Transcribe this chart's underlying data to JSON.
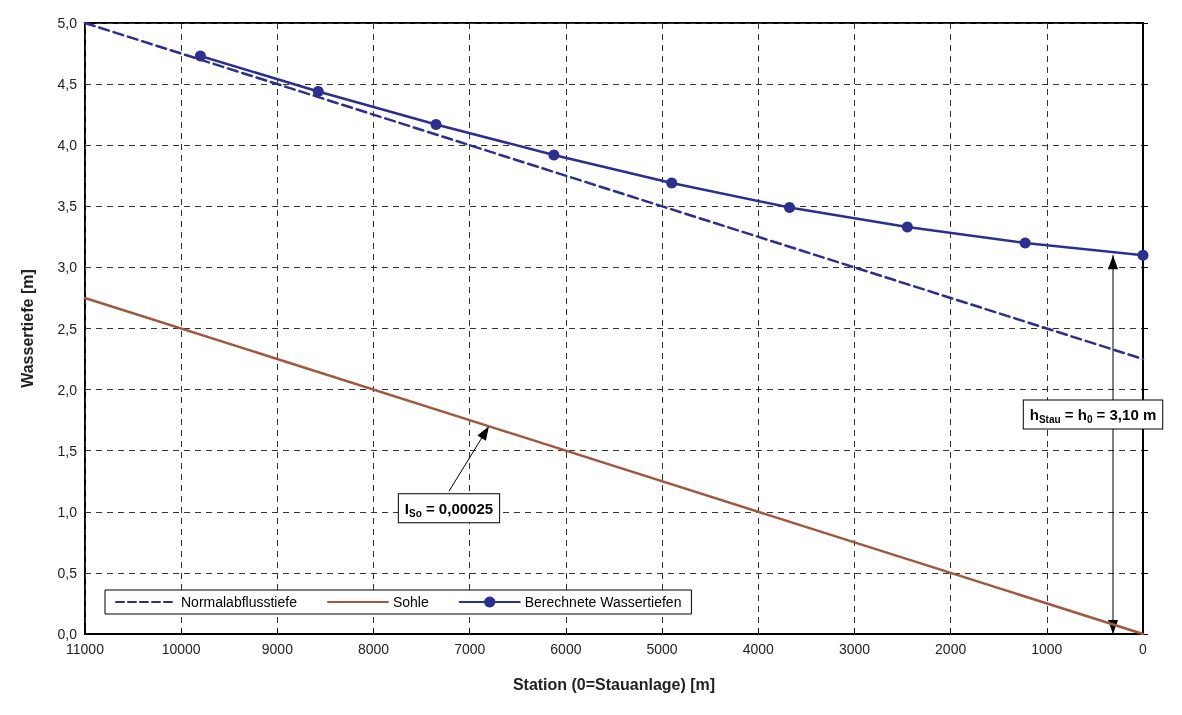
{
  "chart_data": {
    "type": "line",
    "xlabel": "Station (0=Stauanlage) [m]",
    "ylabel": "Wassertiefe [m]",
    "xlim": [
      11000,
      0
    ],
    "xticks": [
      11000,
      10000,
      9000,
      8000,
      7000,
      6000,
      5000,
      4000,
      3000,
      2000,
      1000,
      0
    ],
    "ylim": [
      0,
      5
    ],
    "yticks": [
      {
        "value": 0,
        "label": "0,0"
      },
      {
        "value": 0.5,
        "label": "0,5"
      },
      {
        "value": 1,
        "label": "1,0"
      },
      {
        "value": 1.5,
        "label": "1,5"
      },
      {
        "value": 2,
        "label": "2,0"
      },
      {
        "value": 2.5,
        "label": "2,5"
      },
      {
        "value": 3,
        "label": "3,0"
      },
      {
        "value": 3.5,
        "label": "3,5"
      },
      {
        "value": 4,
        "label": "4,0"
      },
      {
        "value": 4.5,
        "label": "4,5"
      },
      {
        "value": 5,
        "label": "5,0"
      }
    ],
    "grid": true,
    "legend": "bottom left",
    "series": [
      {
        "name": "Normalabflusstiefe",
        "color": "#2b2f91",
        "line_style": "dashed",
        "marker": "none",
        "x": [
          11000,
          0
        ],
        "values": [
          5.0,
          2.25
        ]
      },
      {
        "name": "Sohle",
        "color": "#a0583e",
        "line_style": "solid",
        "marker": "none",
        "x": [
          11000,
          0
        ],
        "values": [
          2.75,
          0
        ]
      },
      {
        "name": "Berechnete Wassertiefen",
        "color": "#2b2f91",
        "line_style": "solid",
        "marker": "circle",
        "x": [
          9800,
          8575,
          7350,
          6125,
          4900,
          3675,
          2450,
          1225,
          0
        ],
        "values": [
          4.73,
          4.44,
          4.17,
          3.92,
          3.69,
          3.49,
          3.33,
          3.2,
          3.1
        ]
      }
    ],
    "annotations": [
      "h$_{Stau}$ = h$_{0}$ = 3,10 m",
      {
        "text": "I$_{So}$ = 0,00025",
        "x": 6800,
        "y": 1.7
      }
    ]
  }
}
